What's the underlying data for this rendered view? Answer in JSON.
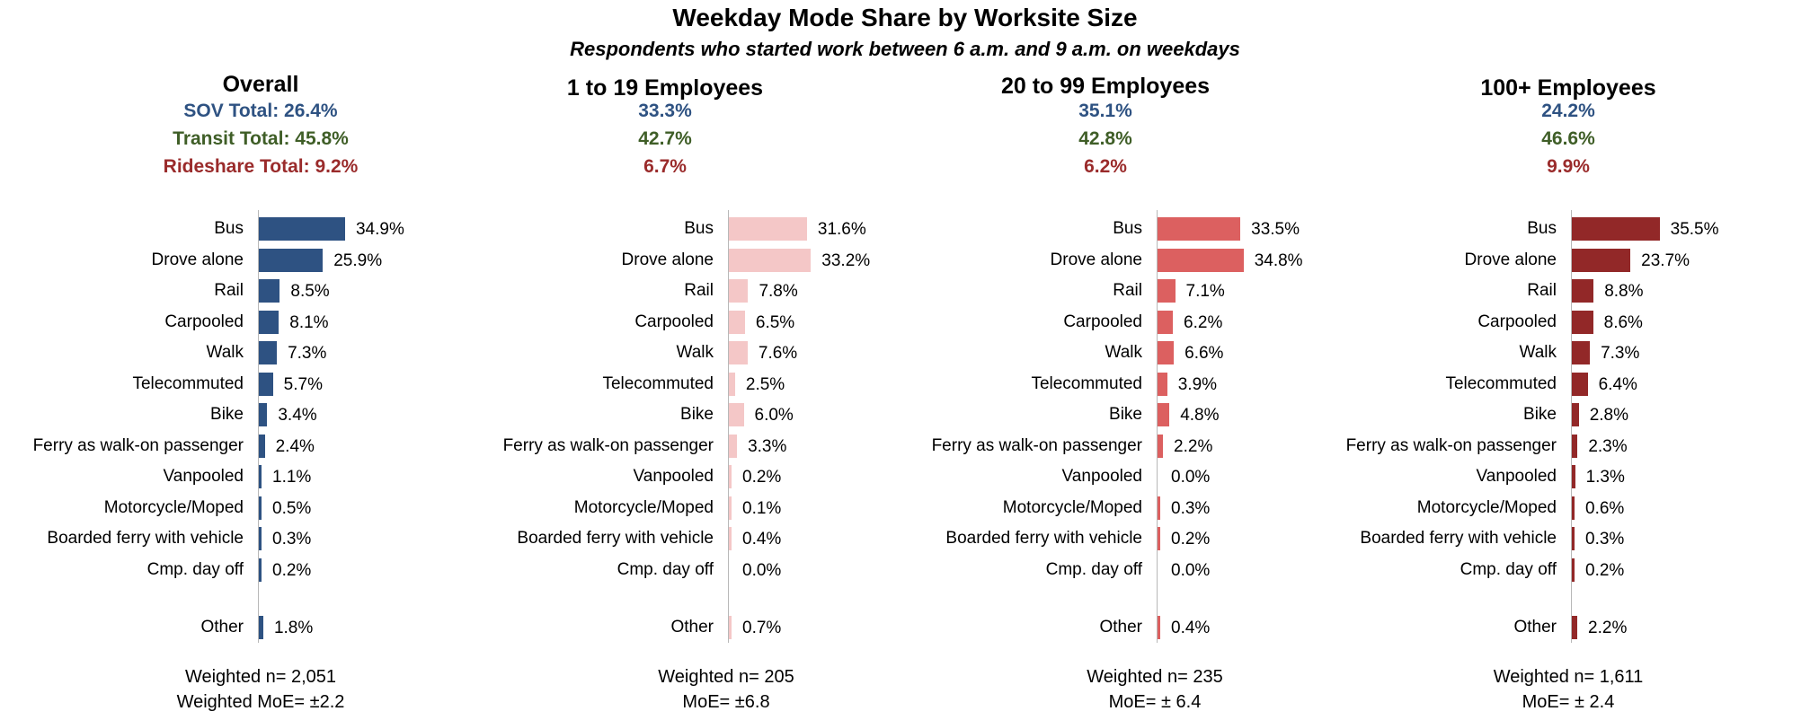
{
  "title": "Weekday Mode Share by Worksite Size",
  "subtitle": "Respondents who started work between 6 a.m. and 9 a.m. on weekdays",
  "chart_data": {
    "type": "bar",
    "orientation": "horizontal",
    "categories": [
      "Bus",
      "Drove alone",
      "Rail",
      "Carpooled",
      "Walk",
      "Telecommuted",
      "Bike",
      "Ferry as walk-on passenger",
      "Vanpooled",
      "Motorcycle/Moped",
      "Boarded ferry with vehicle",
      "Cmp. day off",
      "Other"
    ],
    "panels": [
      {
        "title": "Overall",
        "sov": "SOV Total: 26.4%",
        "transit": "Transit Total: 45.8%",
        "rideshare": "Rideshare Total: 9.2%",
        "color": "#2e5282",
        "values": [
          34.9,
          25.9,
          8.5,
          8.1,
          7.3,
          5.7,
          3.4,
          2.4,
          1.1,
          0.5,
          0.3,
          0.2,
          1.8
        ],
        "labels": [
          "34.9%",
          "25.9%",
          "8.5%",
          "8.1%",
          "7.3%",
          "5.7%",
          "3.4%",
          "2.4%",
          "1.1%",
          "0.5%",
          "0.3%",
          "0.2%",
          "1.8%"
        ],
        "footer1": "Weighted n= 2,051",
        "footer2": "Weighted MoE= ±2.2"
      },
      {
        "title": "1 to 19 Employees",
        "sov": "33.3%",
        "transit": "42.7%",
        "rideshare": "6.7%",
        "color": "#f4c7c7",
        "values": [
          31.6,
          33.2,
          7.8,
          6.5,
          7.6,
          2.5,
          6.0,
          3.3,
          0.2,
          0.1,
          0.4,
          0.0,
          0.7
        ],
        "labels": [
          "31.6%",
          "33.2%",
          "7.8%",
          "6.5%",
          "7.6%",
          "2.5%",
          "6.0%",
          "3.3%",
          "0.2%",
          "0.1%",
          "0.4%",
          "0.0%",
          "0.7%"
        ],
        "footer1": "Weighted n= 205",
        "footer2": "MoE= ±6.8"
      },
      {
        "title": "20 to 99 Employees",
        "sov": "35.1%",
        "transit": "42.8%",
        "rideshare": "6.2%",
        "color": "#dc6060",
        "values": [
          33.5,
          34.8,
          7.1,
          6.2,
          6.6,
          3.9,
          4.8,
          2.2,
          0.0,
          0.3,
          0.2,
          0.0,
          0.4
        ],
        "labels": [
          "33.5%",
          "34.8%",
          "7.1%",
          "6.2%",
          "6.6%",
          "3.9%",
          "4.8%",
          "2.2%",
          "0.0%",
          "0.3%",
          "0.2%",
          "0.0%",
          "0.4%"
        ],
        "footer1": "Weighted n= 235",
        "footer2": "MoE= ± 6.4"
      },
      {
        "title": "100+ Employees",
        "sov": "24.2%",
        "transit": "46.6%",
        "rideshare": "9.9%",
        "color": "#922828",
        "values": [
          35.5,
          23.7,
          8.8,
          8.6,
          7.3,
          6.4,
          2.8,
          2.3,
          1.3,
          0.6,
          0.3,
          0.2,
          2.2
        ],
        "labels": [
          "35.5%",
          "23.7%",
          "8.8%",
          "8.6%",
          "7.3%",
          "6.4%",
          "2.8%",
          "2.3%",
          "1.3%",
          "0.6%",
          "0.3%",
          "0.2%",
          "2.2%"
        ],
        "footer1": "Weighted n= 1,611",
        "footer2": "MoE= ± 2.4"
      }
    ]
  }
}
